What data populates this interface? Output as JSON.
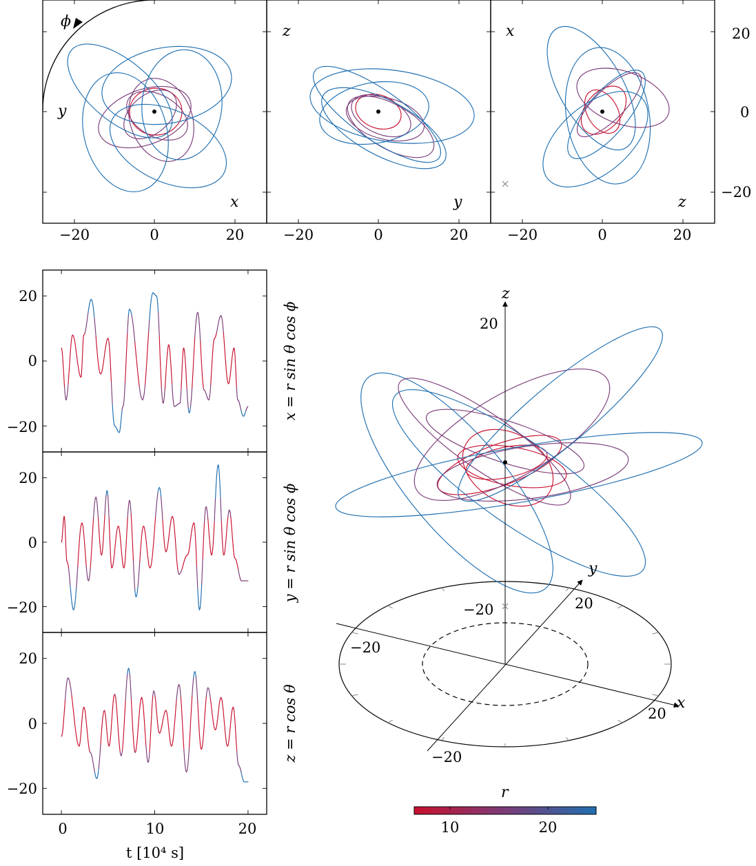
{
  "colors": {
    "near": "#c8102e",
    "mid": "#7b3c78",
    "far": "#1f6fb0"
  },
  "chart_data": [
    {
      "type": "line",
      "panel": "projection-xy",
      "xlabel": "x",
      "ylabel": "y",
      "angle_label": "ϕ",
      "xlim": [
        -28,
        28
      ],
      "ylim": [
        -28,
        28
      ],
      "xticks": [
        -20,
        0,
        20
      ],
      "yticks": [
        -20,
        0,
        20
      ],
      "tick_labels": [
        "−20",
        "0",
        "20"
      ],
      "center": [
        0,
        0
      ]
    },
    {
      "type": "line",
      "panel": "projection-yz",
      "xlabel": "y",
      "ylabel": "z",
      "xlim": [
        -28,
        28
      ],
      "ylim": [
        -28,
        28
      ],
      "xticks": [
        -20,
        0,
        20
      ],
      "yticks": [
        -20,
        0,
        20
      ],
      "tick_labels": [
        "−20",
        "0",
        "20"
      ],
      "center": [
        0,
        0
      ]
    },
    {
      "type": "line",
      "panel": "projection-zx",
      "xlabel": "z",
      "ylabel": "x",
      "xlim": [
        -28,
        28
      ],
      "ylim": [
        -28,
        28
      ],
      "xticks": [
        -20,
        0,
        20
      ],
      "yticks": [
        -20,
        0,
        20
      ],
      "tick_labels": [
        "−20",
        "0",
        "20"
      ],
      "right_tick_labels": [
        "20",
        "0",
        "−20"
      ],
      "center": [
        0,
        0
      ]
    },
    {
      "type": "line",
      "panel": "time-series",
      "xlabel": "t [10⁴ s]",
      "xlim": [
        -2,
        22
      ],
      "ylim": [
        -28,
        28
      ],
      "xticks": [
        0,
        10,
        20
      ],
      "yticks": [
        -20,
        0,
        20
      ],
      "x_tick_labels": [
        "0",
        "10",
        "20"
      ],
      "y_tick_labels": [
        "20",
        "0",
        "−20"
      ],
      "series": [
        {
          "name": "x = r sin θ cos ϕ",
          "t": [
            0,
            0.5,
            1.2,
            2.1,
            2.4,
            3.2,
            4.2,
            5.0,
            5.7,
            6.2,
            6.6,
            7.3,
            8.7,
            9.8,
            10.2,
            10.9,
            11.5,
            12.1,
            12.7,
            13.1,
            13.7,
            14.6,
            15.3,
            15.8,
            16.4,
            17.1,
            17.9,
            18.5,
            18.9,
            19.5,
            20.0
          ],
          "values": [
            4,
            -12,
            8,
            -5,
            8,
            19,
            -4,
            7,
            -20,
            -22,
            -14,
            16,
            -12,
            21,
            20,
            -13,
            5,
            -14,
            -13,
            4,
            -16,
            15,
            -9,
            -12,
            7,
            14,
            -7,
            4,
            -12,
            -17,
            -14
          ]
        },
        {
          "name": "y = r sin θ cos ϕ",
          "t": [
            0,
            0.3,
            0.6,
            1.3,
            2.2,
            2.9,
            3.7,
            4.3,
            4.9,
            5.4,
            6.1,
            6.7,
            7.3,
            8.0,
            8.8,
            9.5,
            10.5,
            11.2,
            11.9,
            12.6,
            13.5,
            14.2,
            14.8,
            15.5,
            16.1,
            16.8,
            17.4,
            18.0,
            18.6,
            19.3,
            20.0
          ],
          "values": [
            0,
            8,
            -6,
            -21,
            6,
            -12,
            14,
            -4,
            16,
            -8,
            5,
            -8,
            13,
            -17,
            5,
            -8,
            17,
            -3,
            8,
            -10,
            -4,
            6,
            -21,
            11,
            -4,
            24,
            -4,
            10,
            -5,
            -12,
            -12
          ]
        },
        {
          "name": "z = r cos θ",
          "t": [
            0,
            0.7,
            1.9,
            2.4,
            3.1,
            3.8,
            4.6,
            5.1,
            5.7,
            6.4,
            7.2,
            7.9,
            8.6,
            9.3,
            9.9,
            10.5,
            11.2,
            11.8,
            12.6,
            13.4,
            14.3,
            15.0,
            15.7,
            16.5,
            17.1,
            17.8,
            18.4,
            19.0,
            19.6,
            20.0
          ],
          "values": [
            -4,
            14,
            -7,
            5,
            -9,
            -17,
            4,
            -7,
            9,
            -10,
            17,
            -9,
            8,
            -12,
            10,
            -3,
            4,
            -7,
            12,
            -15,
            16,
            -8,
            11,
            -2,
            8,
            -7,
            5,
            -13,
            -18,
            -18
          ]
        }
      ]
    },
    {
      "type": "line",
      "panel": "3d-view",
      "axis_labels": [
        "x",
        "y",
        "z"
      ],
      "tick_labels": [
        "20",
        "−20",
        "20",
        "−20",
        "20",
        "−20"
      ]
    },
    {
      "type": "heatmap",
      "panel": "colorbar",
      "title": "r",
      "ticks": [
        10,
        20
      ],
      "tick_labels": [
        "10",
        "20"
      ]
    }
  ]
}
